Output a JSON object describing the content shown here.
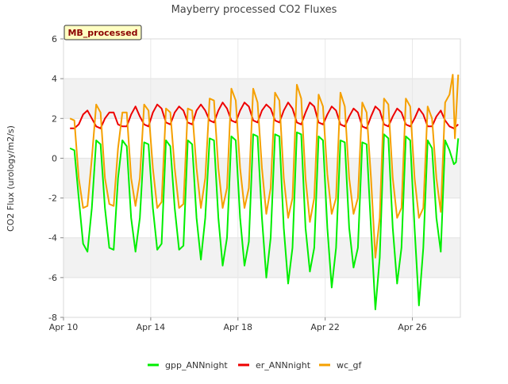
{
  "chart_data": {
    "type": "line",
    "title": "Mayberry processed CO2 Fluxes",
    "ylabel": "CO2 Flux (urology/m2/s)",
    "xlabel": "",
    "badge": "MB_processed",
    "ylim": [
      -8,
      6
    ],
    "yticks": [
      -8,
      -6,
      -4,
      -2,
      0,
      2,
      4,
      6
    ],
    "xlim": [
      10,
      28.2
    ],
    "xticks": [
      {
        "label": "Apr 10",
        "value": 10
      },
      {
        "label": "Apr 14",
        "value": 14
      },
      {
        "label": "Apr 18",
        "value": 18
      },
      {
        "label": "Apr 22",
        "value": 22
      },
      {
        "label": "Apr 26",
        "value": 26
      }
    ],
    "grid": true,
    "legend_position": "bottom",
    "series": [
      {
        "name": "gpp_ANNnight",
        "color": "#00ee00",
        "points": [
          [
            10.3,
            0.5
          ],
          [
            10.5,
            0.4
          ],
          [
            10.7,
            -2.0
          ],
          [
            10.9,
            -4.3
          ],
          [
            11.1,
            -4.7
          ],
          [
            11.3,
            -2.5
          ],
          [
            11.5,
            0.9
          ],
          [
            11.7,
            0.7
          ],
          [
            11.9,
            -2.5
          ],
          [
            12.1,
            -4.5
          ],
          [
            12.3,
            -4.6
          ],
          [
            12.5,
            -1.0
          ],
          [
            12.7,
            0.9
          ],
          [
            12.9,
            0.6
          ],
          [
            13.1,
            -3.0
          ],
          [
            13.3,
            -4.7
          ],
          [
            13.5,
            -3.0
          ],
          [
            13.7,
            0.8
          ],
          [
            13.9,
            0.7
          ],
          [
            14.1,
            -2.5
          ],
          [
            14.3,
            -4.6
          ],
          [
            14.5,
            -4.3
          ],
          [
            14.7,
            0.9
          ],
          [
            14.9,
            0.6
          ],
          [
            15.1,
            -2.5
          ],
          [
            15.3,
            -4.6
          ],
          [
            15.5,
            -4.4
          ],
          [
            15.7,
            0.9
          ],
          [
            15.9,
            0.7
          ],
          [
            16.1,
            -3.0
          ],
          [
            16.3,
            -5.1
          ],
          [
            16.5,
            -3.0
          ],
          [
            16.7,
            1.0
          ],
          [
            16.9,
            0.9
          ],
          [
            17.1,
            -3.0
          ],
          [
            17.3,
            -5.4
          ],
          [
            17.5,
            -4.0
          ],
          [
            17.7,
            1.1
          ],
          [
            17.9,
            0.9
          ],
          [
            18.1,
            -3.0
          ],
          [
            18.3,
            -5.4
          ],
          [
            18.5,
            -4.2
          ],
          [
            18.7,
            1.2
          ],
          [
            18.9,
            1.1
          ],
          [
            19.1,
            -3.0
          ],
          [
            19.3,
            -6.0
          ],
          [
            19.5,
            -4.0
          ],
          [
            19.7,
            1.2
          ],
          [
            19.9,
            1.1
          ],
          [
            20.1,
            -3.5
          ],
          [
            20.3,
            -6.3
          ],
          [
            20.5,
            -4.5
          ],
          [
            20.7,
            1.3
          ],
          [
            20.9,
            1.2
          ],
          [
            21.1,
            -3.5
          ],
          [
            21.3,
            -5.7
          ],
          [
            21.5,
            -4.5
          ],
          [
            21.7,
            1.1
          ],
          [
            21.9,
            0.9
          ],
          [
            22.1,
            -3.5
          ],
          [
            22.3,
            -6.5
          ],
          [
            22.5,
            -4.5
          ],
          [
            22.7,
            0.9
          ],
          [
            22.9,
            0.8
          ],
          [
            23.1,
            -3.5
          ],
          [
            23.3,
            -5.5
          ],
          [
            23.5,
            -4.5
          ],
          [
            23.7,
            0.8
          ],
          [
            23.9,
            0.7
          ],
          [
            24.1,
            -3.5
          ],
          [
            24.3,
            -7.6
          ],
          [
            24.5,
            -5.0
          ],
          [
            24.7,
            1.2
          ],
          [
            24.9,
            1.0
          ],
          [
            25.1,
            -3.5
          ],
          [
            25.3,
            -6.3
          ],
          [
            25.5,
            -4.5
          ],
          [
            25.7,
            1.1
          ],
          [
            25.9,
            0.9
          ],
          [
            26.1,
            -3.5
          ],
          [
            26.3,
            -7.4
          ],
          [
            26.5,
            -4.5
          ],
          [
            26.7,
            0.9
          ],
          [
            26.9,
            0.5
          ],
          [
            27.1,
            -3.0
          ],
          [
            27.3,
            -4.7
          ],
          [
            27.5,
            0.9
          ],
          [
            27.7,
            0.4
          ],
          [
            27.9,
            -0.3
          ],
          [
            28.0,
            -0.2
          ],
          [
            28.1,
            1.0
          ]
        ]
      },
      {
        "name": "er_ANNnight",
        "color": "#ee0000",
        "points": [
          [
            10.3,
            1.5
          ],
          [
            10.5,
            1.5
          ],
          [
            10.7,
            1.7
          ],
          [
            10.9,
            2.2
          ],
          [
            11.1,
            2.4
          ],
          [
            11.3,
            2.0
          ],
          [
            11.5,
            1.6
          ],
          [
            11.7,
            1.5
          ],
          [
            11.9,
            2.0
          ],
          [
            12.1,
            2.3
          ],
          [
            12.3,
            2.3
          ],
          [
            12.5,
            1.7
          ],
          [
            12.7,
            1.6
          ],
          [
            12.9,
            1.6
          ],
          [
            13.1,
            2.2
          ],
          [
            13.3,
            2.6
          ],
          [
            13.5,
            2.1
          ],
          [
            13.7,
            1.7
          ],
          [
            13.9,
            1.6
          ],
          [
            14.1,
            2.3
          ],
          [
            14.3,
            2.7
          ],
          [
            14.5,
            2.5
          ],
          [
            14.7,
            1.8
          ],
          [
            14.9,
            1.7
          ],
          [
            15.1,
            2.3
          ],
          [
            15.3,
            2.6
          ],
          [
            15.5,
            2.4
          ],
          [
            15.7,
            1.8
          ],
          [
            15.9,
            1.7
          ],
          [
            16.1,
            2.4
          ],
          [
            16.3,
            2.7
          ],
          [
            16.5,
            2.4
          ],
          [
            16.7,
            1.9
          ],
          [
            16.9,
            1.8
          ],
          [
            17.1,
            2.4
          ],
          [
            17.3,
            2.8
          ],
          [
            17.5,
            2.5
          ],
          [
            17.7,
            1.9
          ],
          [
            17.9,
            1.8
          ],
          [
            18.1,
            2.4
          ],
          [
            18.3,
            2.8
          ],
          [
            18.5,
            2.6
          ],
          [
            18.7,
            1.9
          ],
          [
            18.9,
            1.8
          ],
          [
            19.1,
            2.4
          ],
          [
            19.3,
            2.7
          ],
          [
            19.5,
            2.5
          ],
          [
            19.7,
            1.9
          ],
          [
            19.9,
            1.8
          ],
          [
            20.1,
            2.4
          ],
          [
            20.3,
            2.8
          ],
          [
            20.5,
            2.5
          ],
          [
            20.7,
            1.8
          ],
          [
            20.9,
            1.7
          ],
          [
            21.1,
            2.3
          ],
          [
            21.3,
            2.8
          ],
          [
            21.5,
            2.6
          ],
          [
            21.7,
            1.8
          ],
          [
            21.9,
            1.7
          ],
          [
            22.1,
            2.2
          ],
          [
            22.3,
            2.6
          ],
          [
            22.5,
            2.4
          ],
          [
            22.7,
            1.7
          ],
          [
            22.9,
            1.6
          ],
          [
            23.1,
            2.1
          ],
          [
            23.3,
            2.5
          ],
          [
            23.5,
            2.3
          ],
          [
            23.7,
            1.6
          ],
          [
            23.9,
            1.5
          ],
          [
            24.1,
            2.1
          ],
          [
            24.3,
            2.6
          ],
          [
            24.5,
            2.4
          ],
          [
            24.7,
            1.7
          ],
          [
            24.9,
            1.6
          ],
          [
            25.1,
            2.1
          ],
          [
            25.3,
            2.5
          ],
          [
            25.5,
            2.3
          ],
          [
            25.7,
            1.7
          ],
          [
            25.9,
            1.6
          ],
          [
            26.1,
            2.0
          ],
          [
            26.3,
            2.5
          ],
          [
            26.5,
            2.2
          ],
          [
            26.7,
            1.6
          ],
          [
            26.9,
            1.6
          ],
          [
            27.1,
            2.1
          ],
          [
            27.3,
            2.4
          ],
          [
            27.5,
            1.9
          ],
          [
            27.7,
            1.6
          ],
          [
            27.9,
            1.5
          ],
          [
            28.0,
            1.6
          ],
          [
            28.1,
            1.7
          ]
        ]
      },
      {
        "name": "wc_gf",
        "color": "#f5a000",
        "points": [
          [
            10.3,
            2.0
          ],
          [
            10.5,
            1.9
          ],
          [
            10.7,
            -1.0
          ],
          [
            10.9,
            -2.5
          ],
          [
            11.1,
            -2.4
          ],
          [
            11.3,
            0.0
          ],
          [
            11.5,
            2.7
          ],
          [
            11.7,
            2.3
          ],
          [
            11.9,
            -1.0
          ],
          [
            12.1,
            -2.3
          ],
          [
            12.3,
            -2.4
          ],
          [
            12.5,
            0.5
          ],
          [
            12.7,
            2.3
          ],
          [
            12.9,
            2.3
          ],
          [
            13.1,
            -1.0
          ],
          [
            13.3,
            -2.4
          ],
          [
            13.5,
            -1.0
          ],
          [
            13.7,
            2.7
          ],
          [
            13.9,
            2.4
          ],
          [
            14.1,
            -0.5
          ],
          [
            14.3,
            -2.5
          ],
          [
            14.5,
            -2.2
          ],
          [
            14.7,
            2.5
          ],
          [
            14.9,
            2.3
          ],
          [
            15.1,
            -0.5
          ],
          [
            15.3,
            -2.5
          ],
          [
            15.5,
            -2.3
          ],
          [
            15.7,
            2.5
          ],
          [
            15.9,
            2.4
          ],
          [
            16.1,
            -0.5
          ],
          [
            16.3,
            -2.5
          ],
          [
            16.5,
            -1.0
          ],
          [
            16.7,
            3.0
          ],
          [
            16.9,
            2.9
          ],
          [
            17.1,
            -0.5
          ],
          [
            17.3,
            -2.5
          ],
          [
            17.5,
            -1.5
          ],
          [
            17.7,
            3.5
          ],
          [
            17.9,
            2.9
          ],
          [
            18.1,
            -0.5
          ],
          [
            18.3,
            -2.5
          ],
          [
            18.5,
            -1.5
          ],
          [
            18.7,
            3.5
          ],
          [
            18.9,
            2.8
          ],
          [
            19.1,
            -0.5
          ],
          [
            19.3,
            -2.8
          ],
          [
            19.5,
            -1.5
          ],
          [
            19.7,
            3.3
          ],
          [
            19.9,
            2.9
          ],
          [
            20.1,
            -1.0
          ],
          [
            20.3,
            -3.0
          ],
          [
            20.5,
            -2.0
          ],
          [
            20.7,
            3.7
          ],
          [
            20.9,
            3.0
          ],
          [
            21.1,
            -1.0
          ],
          [
            21.3,
            -3.2
          ],
          [
            21.5,
            -2.0
          ],
          [
            21.7,
            3.2
          ],
          [
            21.9,
            2.6
          ],
          [
            22.1,
            -0.8
          ],
          [
            22.3,
            -2.8
          ],
          [
            22.5,
            -2.0
          ],
          [
            22.7,
            3.3
          ],
          [
            22.9,
            2.6
          ],
          [
            23.1,
            -1.0
          ],
          [
            23.3,
            -2.8
          ],
          [
            23.5,
            -2.0
          ],
          [
            23.7,
            2.8
          ],
          [
            23.9,
            2.3
          ],
          [
            24.1,
            -1.0
          ],
          [
            24.3,
            -5.0
          ],
          [
            24.5,
            -3.0
          ],
          [
            24.7,
            3.0
          ],
          [
            24.9,
            2.7
          ],
          [
            25.1,
            -1.0
          ],
          [
            25.3,
            -3.0
          ],
          [
            25.5,
            -2.5
          ],
          [
            25.7,
            3.0
          ],
          [
            25.9,
            2.6
          ],
          [
            26.1,
            -1.0
          ],
          [
            26.3,
            -3.0
          ],
          [
            26.5,
            -2.5
          ],
          [
            26.7,
            2.6
          ],
          [
            26.9,
            2.0
          ],
          [
            27.1,
            -1.0
          ],
          [
            27.3,
            -2.7
          ],
          [
            27.5,
            2.8
          ],
          [
            27.7,
            3.2
          ],
          [
            27.85,
            4.2
          ],
          [
            27.95,
            1.0
          ],
          [
            28.1,
            4.2
          ]
        ]
      }
    ]
  }
}
